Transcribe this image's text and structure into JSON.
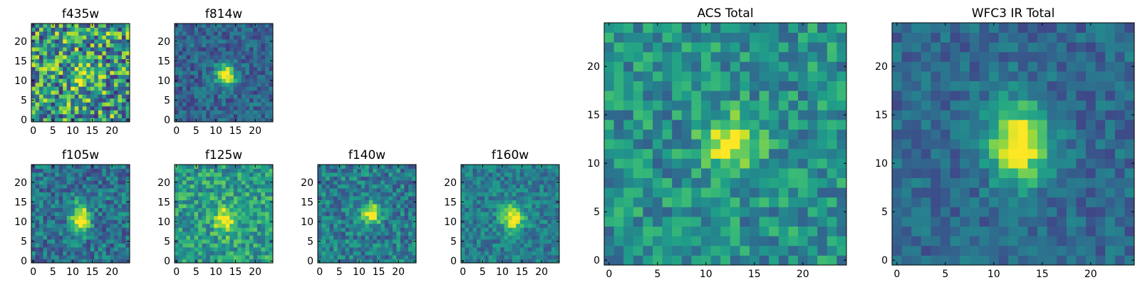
{
  "chart_data": [
    {
      "type": "heatmap",
      "title": "f435w",
      "grid_size": 25,
      "xlim": [
        0,
        25
      ],
      "ylim": [
        0,
        25
      ],
      "xticks": [
        0,
        5,
        10,
        15,
        20
      ],
      "yticks": [
        0,
        5,
        10,
        15,
        20
      ],
      "colormap": "viridis",
      "grid": false,
      "peak": [
        12,
        11.5
      ],
      "sigma": [
        1.5,
        1.6
      ],
      "noise": 0.42,
      "baseline": 0.55
    },
    {
      "type": "heatmap",
      "title": "f814w",
      "grid_size": 25,
      "xlim": [
        0,
        25
      ],
      "ylim": [
        0,
        25
      ],
      "xticks": [
        0,
        5,
        10,
        15,
        20
      ],
      "yticks": [
        0,
        5,
        10,
        15,
        20
      ],
      "colormap": "viridis",
      "grid": false,
      "peak": [
        12.5,
        11.5
      ],
      "sigma": [
        1.7,
        1.9
      ],
      "noise": 0.16,
      "baseline": 0.32
    },
    {
      "type": "heatmap",
      "title": "ACS Total",
      "grid_size": 25,
      "xlim": [
        0,
        25
      ],
      "ylim": [
        0,
        25
      ],
      "xticks": [
        0,
        5,
        10,
        15,
        20
      ],
      "yticks": [
        0,
        5,
        10,
        15,
        20
      ],
      "colormap": "viridis",
      "grid": false,
      "peak": [
        12.5,
        12
      ],
      "sigma": [
        1.8,
        2.1
      ],
      "noise": 0.2,
      "baseline": 0.5
    },
    {
      "type": "heatmap",
      "title": "WFC3 IR Total",
      "grid_size": 25,
      "xlim": [
        0,
        25
      ],
      "ylim": [
        0,
        25
      ],
      "xticks": [
        0,
        5,
        10,
        15,
        20
      ],
      "yticks": [
        0,
        5,
        10,
        15,
        20
      ],
      "colormap": "viridis",
      "grid": false,
      "peak": [
        12.5,
        12
      ],
      "sigma": [
        2.1,
        2.9
      ],
      "noise": 0.13,
      "baseline": 0.34
    },
    {
      "type": "heatmap",
      "title": "f105w",
      "grid_size": 25,
      "xlim": [
        0,
        25
      ],
      "ylim": [
        0,
        25
      ],
      "xticks": [
        0,
        5,
        10,
        15,
        20
      ],
      "yticks": [
        0,
        5,
        10,
        15,
        20
      ],
      "colormap": "viridis",
      "grid": false,
      "peak": [
        12,
        11
      ],
      "sigma": [
        1.6,
        2.6
      ],
      "noise": 0.2,
      "baseline": 0.38
    },
    {
      "type": "heatmap",
      "title": "f125w",
      "grid_size": 25,
      "xlim": [
        0,
        25
      ],
      "ylim": [
        0,
        25
      ],
      "xticks": [
        0,
        5,
        10,
        15,
        20
      ],
      "yticks": [
        0,
        5,
        10,
        15,
        20
      ],
      "colormap": "viridis",
      "grid": false,
      "peak": [
        12.5,
        10.5
      ],
      "sigma": [
        1.8,
        2.4
      ],
      "noise": 0.22,
      "baseline": 0.55
    },
    {
      "type": "heatmap",
      "title": "f140w",
      "grid_size": 25,
      "xlim": [
        0,
        25
      ],
      "ylim": [
        0,
        25
      ],
      "xticks": [
        0,
        5,
        10,
        15,
        20
      ],
      "yticks": [
        0,
        5,
        10,
        15,
        20
      ],
      "colormap": "viridis",
      "grid": false,
      "peak": [
        13,
        12
      ],
      "sigma": [
        1.8,
        1.9
      ],
      "noise": 0.2,
      "baseline": 0.42
    },
    {
      "type": "heatmap",
      "title": "f160w",
      "grid_size": 25,
      "xlim": [
        0,
        25
      ],
      "ylim": [
        0,
        25
      ],
      "xticks": [
        0,
        5,
        10,
        15,
        20
      ],
      "yticks": [
        0,
        5,
        10,
        15,
        20
      ],
      "colormap": "viridis",
      "grid": false,
      "peak": [
        12.5,
        11
      ],
      "sigma": [
        2.0,
        2.2
      ],
      "noise": 0.16,
      "baseline": 0.42
    }
  ]
}
